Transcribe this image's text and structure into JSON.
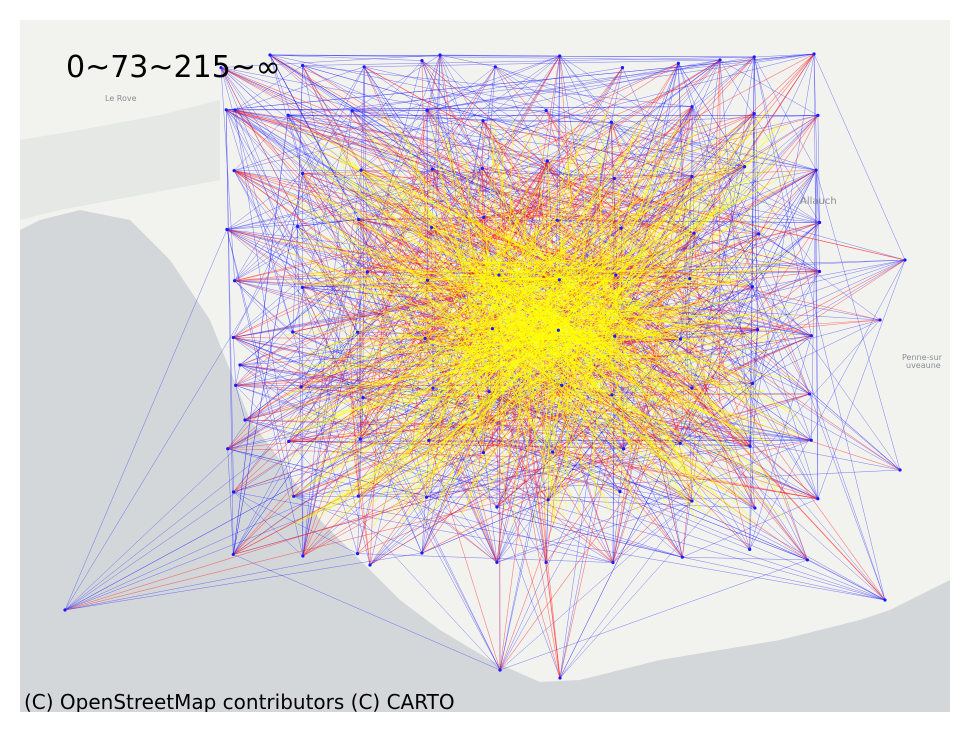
{
  "legend_text": "0~73~215~∞",
  "attribution": "(C) OpenStreetMap contributors (C) CARTO",
  "places": [
    {
      "key": "le-rove",
      "text": "Le Rove"
    },
    {
      "key": "allauch",
      "text": "Allauch"
    },
    {
      "key": "la-penne",
      "text": "Penne-sur"
    },
    {
      "key": "huveaune",
      "text": "uveaune"
    }
  ],
  "colors": {
    "sea": "#d3d7da",
    "land": "#f2f2ef",
    "low": "#1a1aff",
    "mid": "#ff1a1a",
    "high": "#ffff00"
  },
  "bin_edges": [
    "0",
    "73",
    "215",
    "∞"
  ]
}
